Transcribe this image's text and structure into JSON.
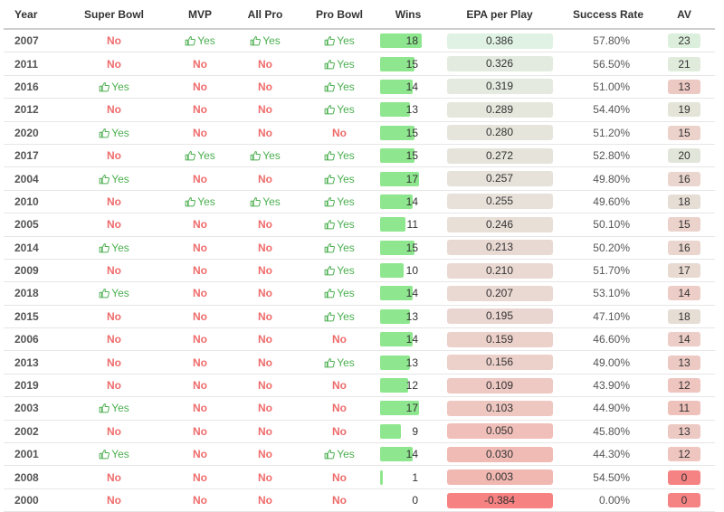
{
  "headers": {
    "year": "Year",
    "super_bowl": "Super Bowl",
    "mvp": "MVP",
    "all_pro": "All Pro",
    "pro_bowl": "Pro Bowl",
    "wins": "Wins",
    "epa": "EPA per Play",
    "success_rate": "Success Rate",
    "av": "AV"
  },
  "labels": {
    "yes": "Yes",
    "no": "No"
  },
  "icons": {
    "yes": "thumbs-up-icon"
  },
  "colors": {
    "yes": "#4caf50",
    "no": "#ef6b6b",
    "wins_bar": "#8ee68e"
  },
  "wins_max": 18,
  "rows": [
    {
      "year": "2007",
      "super_bowl": false,
      "mvp": true,
      "all_pro": true,
      "pro_bowl": true,
      "wins": 18,
      "epa": "0.386",
      "success_rate": "57.80%",
      "av": 23,
      "epa_color": "#dff2e4",
      "av_color": "#dcefdc"
    },
    {
      "year": "2011",
      "super_bowl": false,
      "mvp": false,
      "all_pro": false,
      "pro_bowl": true,
      "wins": 15,
      "epa": "0.326",
      "success_rate": "56.50%",
      "av": 21,
      "epa_color": "#e3ebe0",
      "av_color": "#e0ebdc"
    },
    {
      "year": "2016",
      "super_bowl": true,
      "mvp": false,
      "all_pro": false,
      "pro_bowl": true,
      "wins": 14,
      "epa": "0.319",
      "success_rate": "51.00%",
      "av": 13,
      "epa_color": "#e4eadf",
      "av_color": "#edc9c4"
    },
    {
      "year": "2012",
      "super_bowl": false,
      "mvp": false,
      "all_pro": false,
      "pro_bowl": true,
      "wins": 13,
      "epa": "0.289",
      "success_rate": "54.40%",
      "av": 19,
      "epa_color": "#e5e6dc",
      "av_color": "#e4e4d8"
    },
    {
      "year": "2020",
      "super_bowl": true,
      "mvp": false,
      "all_pro": false,
      "pro_bowl": false,
      "wins": 15,
      "epa": "0.280",
      "success_rate": "51.20%",
      "av": 15,
      "epa_color": "#e6e5db",
      "av_color": "#ebd2cb"
    },
    {
      "year": "2017",
      "super_bowl": false,
      "mvp": true,
      "all_pro": true,
      "pro_bowl": true,
      "wins": 15,
      "epa": "0.272",
      "success_rate": "52.80%",
      "av": 20,
      "epa_color": "#e6e4da",
      "av_color": "#e2e6da"
    },
    {
      "year": "2004",
      "super_bowl": true,
      "mvp": false,
      "all_pro": false,
      "pro_bowl": true,
      "wins": 17,
      "epa": "0.257",
      "success_rate": "49.80%",
      "av": 16,
      "epa_color": "#e7e2d9",
      "av_color": "#eaD6ce"
    },
    {
      "year": "2010",
      "super_bowl": false,
      "mvp": true,
      "all_pro": true,
      "pro_bowl": true,
      "wins": 14,
      "epa": "0.255",
      "success_rate": "49.60%",
      "av": 18,
      "epa_color": "#e7e1d9",
      "av_color": "#e6ddd4"
    },
    {
      "year": "2005",
      "super_bowl": false,
      "mvp": false,
      "all_pro": false,
      "pro_bowl": true,
      "wins": 11,
      "epa": "0.246",
      "success_rate": "50.10%",
      "av": 15,
      "epa_color": "#e8dfd7",
      "av_color": "#ebd2cb"
    },
    {
      "year": "2014",
      "super_bowl": true,
      "mvp": false,
      "all_pro": false,
      "pro_bowl": true,
      "wins": 15,
      "epa": "0.213",
      "success_rate": "50.20%",
      "av": 16,
      "epa_color": "#e9d9d3",
      "av_color": "#ead6ce"
    },
    {
      "year": "2009",
      "super_bowl": false,
      "mvp": false,
      "all_pro": false,
      "pro_bowl": true,
      "wins": 10,
      "epa": "0.210",
      "success_rate": "51.70%",
      "av": 17,
      "epa_color": "#e9d9d2",
      "av_color": "#e8dad1"
    },
    {
      "year": "2018",
      "super_bowl": true,
      "mvp": false,
      "all_pro": false,
      "pro_bowl": true,
      "wins": 14,
      "epa": "0.207",
      "success_rate": "53.10%",
      "av": 14,
      "epa_color": "#eAd8d2",
      "av_color": "#edcdc7"
    },
    {
      "year": "2015",
      "super_bowl": false,
      "mvp": false,
      "all_pro": false,
      "pro_bowl": true,
      "wins": 13,
      "epa": "0.195",
      "success_rate": "47.10%",
      "av": 18,
      "epa_color": "#ead6d0",
      "av_color": "#e6ddd4"
    },
    {
      "year": "2006",
      "super_bowl": false,
      "mvp": false,
      "all_pro": false,
      "pro_bowl": false,
      "wins": 14,
      "epa": "0.159",
      "success_rate": "46.60%",
      "av": 14,
      "epa_color": "#ecd0ca",
      "av_color": "#edcdc7"
    },
    {
      "year": "2013",
      "super_bowl": false,
      "mvp": false,
      "all_pro": false,
      "pro_bowl": true,
      "wins": 13,
      "epa": "0.156",
      "success_rate": "49.00%",
      "av": 13,
      "epa_color": "#ecd0ca",
      "av_color": "#edc9c4"
    },
    {
      "year": "2019",
      "super_bowl": false,
      "mvp": false,
      "all_pro": false,
      "pro_bowl": false,
      "wins": 12,
      "epa": "0.109",
      "success_rate": "43.90%",
      "av": 12,
      "epa_color": "#eec8c2",
      "av_color": "#eec5bf"
    },
    {
      "year": "2003",
      "super_bowl": true,
      "mvp": false,
      "all_pro": false,
      "pro_bowl": false,
      "wins": 17,
      "epa": "0.103",
      "success_rate": "44.90%",
      "av": 11,
      "epa_color": "#eec7c1",
      "av_color": "#efc1bb"
    },
    {
      "year": "2002",
      "super_bowl": false,
      "mvp": false,
      "all_pro": false,
      "pro_bowl": false,
      "wins": 9,
      "epa": "0.050",
      "success_rate": "45.80%",
      "av": 13,
      "epa_color": "#f0bfb9",
      "av_color": "#edc9c4"
    },
    {
      "year": "2001",
      "super_bowl": true,
      "mvp": false,
      "all_pro": false,
      "pro_bowl": true,
      "wins": 14,
      "epa": "0.030",
      "success_rate": "44.30%",
      "av": 12,
      "epa_color": "#f0bbb5",
      "av_color": "#eec5bf"
    },
    {
      "year": "2008",
      "super_bowl": false,
      "mvp": false,
      "all_pro": false,
      "pro_bowl": false,
      "wins": 1,
      "epa": "0.003",
      "success_rate": "54.50%",
      "av": 0,
      "epa_color": "#f1b7b1",
      "av_color": "#f68383"
    },
    {
      "year": "2000",
      "super_bowl": false,
      "mvp": false,
      "all_pro": false,
      "pro_bowl": false,
      "wins": 0,
      "epa": "-0.384",
      "success_rate": "0.00%",
      "av": 0,
      "epa_color": "#f78282",
      "av_color": "#f68383"
    }
  ]
}
